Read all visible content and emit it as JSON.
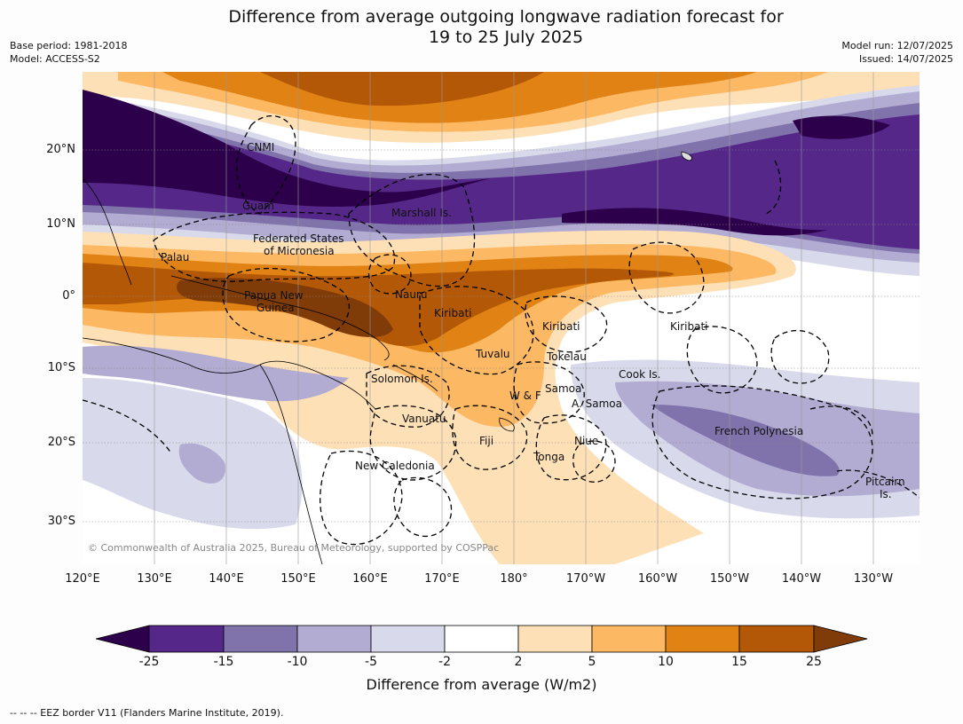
{
  "title_line1": "Difference from average outgoing longwave radiation forecast for",
  "title_line2": "19 to 25 July 2025",
  "meta_left": [
    "Base period: 1981-2018",
    "Model: ACCESS-S2"
  ],
  "meta_right": [
    "Model run: 12/07/2025",
    "Issued: 14/07/2025"
  ],
  "lat_labels": [
    "20°N",
    "10°N",
    "0°",
    "10°S",
    "20°S",
    "30°S"
  ],
  "lon_labels": [
    "120°E",
    "130°E",
    "140°E",
    "150°E",
    "160°E",
    "170°E",
    "180°",
    "170°W",
    "160°W",
    "150°W",
    "140°W",
    "130°W"
  ],
  "places": {
    "cnmi": "CNMI",
    "guam": "Guam",
    "marshall": "Marshall Is.",
    "fsm1": "Federated States",
    "fsm2": "of Micronesia",
    "palau": "Palau",
    "png1": "Papua New",
    "png2": "Guinea",
    "nauru": "Nauru",
    "kiribati_w": "Kiribati",
    "kiribati_c": "Kiribati",
    "kiribati_e": "Kiribati",
    "tuvalu": "Tuvalu",
    "tokelau": "Tokelau",
    "cook": "Cook Is.",
    "solomon": "Solomon Is.",
    "wf": "W & F",
    "samoa": "Samoa",
    "asamoa": "A. Samoa",
    "vanuatu": "Vanuatu",
    "fiji": "Fiji",
    "niue": "Niue",
    "tonga": "Tonga",
    "frpoly": "French Polynesia",
    "newcal": "New Caledonia",
    "pitcairn1": "Pitcairn",
    "pitcairn2": "Is."
  },
  "copyright": "© Commonwealth of Australia 2025, Bureau of Meteorology, supported by COSPPac",
  "colorbar": {
    "colors": [
      "#2d004b",
      "#542788",
      "#8073ac",
      "#b2abd2",
      "#d8daeb",
      "#ffffff",
      "#fee0b6",
      "#fdb863",
      "#e08214",
      "#b35806",
      "#7f3b08"
    ],
    "tick_labels": [
      "-25",
      "-15",
      "-10",
      "-5",
      "-2",
      "2",
      "5",
      "10",
      "15",
      "25"
    ],
    "title": "Difference from average (W/m2)"
  },
  "footnote": "--  --  -- EEZ border V11 (Flanders Marine Institute, 2019)."
}
